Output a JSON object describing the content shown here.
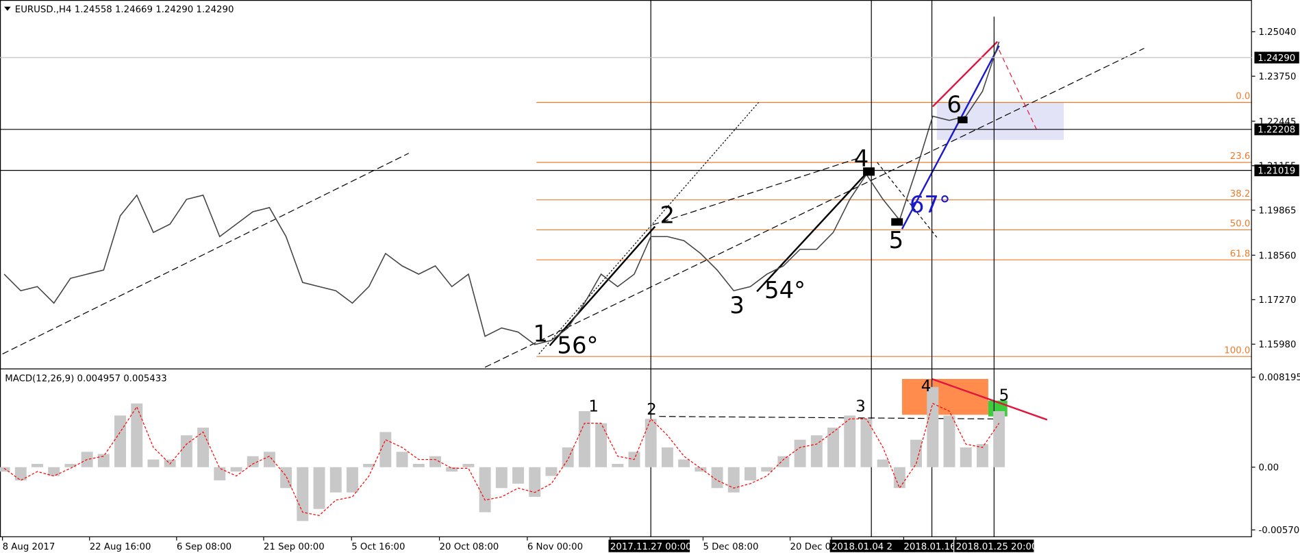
{
  "chart_data": [
    {
      "type": "line",
      "title": "EURUSD.,H4  1.24558 1.24669 1.24290 1.24290",
      "x": [
        0,
        1,
        2,
        3,
        4,
        5,
        6,
        7,
        8,
        9,
        10,
        11,
        12,
        13,
        14,
        15,
        16,
        17,
        18,
        19,
        20,
        21,
        22,
        23,
        24,
        25,
        26,
        27,
        28,
        29,
        30,
        31,
        32,
        33,
        34,
        35,
        36,
        37,
        38,
        39,
        40,
        41,
        42,
        43,
        44,
        45,
        46,
        47,
        48,
        49,
        50,
        51,
        52,
        53,
        54,
        55,
        56,
        57,
        58,
        59,
        60
      ],
      "values": [
        1.1801,
        1.1753,
        1.1765,
        1.1717,
        1.1789,
        1.1801,
        1.1813,
        1.197,
        1.203,
        1.1922,
        1.1946,
        1.2018,
        1.203,
        1.191,
        1.1946,
        1.1982,
        1.1994,
        1.191,
        1.1777,
        1.1765,
        1.1753,
        1.1717,
        1.1765,
        1.1861,
        1.1825,
        1.1801,
        1.1825,
        1.1765,
        1.1801,
        1.1621,
        1.1645,
        1.1633,
        1.1597,
        1.1609,
        1.1645,
        1.1717,
        1.1801,
        1.1765,
        1.1801,
        1.191,
        1.191,
        1.1898,
        1.1861,
        1.1813,
        1.1753,
        1.1765,
        1.1801,
        1.1825,
        1.1873,
        1.1873,
        1.1922,
        1.2018,
        1.209,
        1.2018,
        1.1958,
        1.2102,
        1.2259,
        1.2247,
        1.2259,
        1.2331,
        1.2475
      ],
      "color": "#444444",
      "xlim": [
        -0.25,
        75.25
      ],
      "ylim": [
        1.1531,
        1.2596
      ],
      "yticks": [
        {
          "value": 1.2504,
          "label": "1.25040"
        },
        {
          "value": 1.2375,
          "label": "1.23750"
        },
        {
          "value": 1.22445,
          "label": "1.22445"
        },
        {
          "value": 1.21155,
          "label": "1.21155"
        },
        {
          "value": 1.19865,
          "label": "1.19865"
        },
        {
          "value": 1.1856,
          "label": "1.18560"
        },
        {
          "value": 1.1727,
          "label": "1.17270"
        },
        {
          "value": 1.1598,
          "label": "1.15980"
        }
      ],
      "price_lines": [
        {
          "value": 1.2429,
          "label": "1.24290"
        },
        {
          "value": 1.22208,
          "label": "1.22208"
        },
        {
          "value": 1.21019,
          "label": "1.21019"
        }
      ],
      "fib_labels": [
        "0.0",
        "23.6",
        "38.2",
        "50.0",
        "61.8",
        "100.0"
      ],
      "annotations": [
        "1",
        "2",
        "3",
        "4",
        "5",
        "6",
        "56°",
        "54°",
        "67°"
      ]
    },
    {
      "type": "bar",
      "title": "MACD(12,26,9) 0.004957 0.005433",
      "x": [
        0,
        1,
        2,
        3,
        4,
        5,
        6,
        7,
        8,
        9,
        10,
        11,
        12,
        13,
        14,
        15,
        16,
        17,
        18,
        19,
        20,
        21,
        22,
        23,
        24,
        25,
        26,
        27,
        28,
        29,
        30,
        31,
        32,
        33,
        34,
        35,
        36,
        37,
        38,
        39,
        40,
        41,
        42,
        43,
        44,
        45,
        46,
        47,
        48,
        49,
        50,
        51,
        52,
        53,
        54,
        55,
        56,
        57,
        58,
        59,
        60
      ],
      "series": [
        {
          "type": "bar",
          "color": "#c8c8c8",
          "values": [
            -0.0004,
            -0.0012,
            0.0003,
            -0.0008,
            0.0003,
            0.0014,
            0.0012,
            0.0047,
            0.0058,
            0.0007,
            0.0007,
            0.0029,
            0.0036,
            -0.0012,
            -0.0004,
            0.001,
            0.0014,
            -0.0019,
            -0.0049,
            -0.0038,
            -0.0023,
            -0.0023,
            0.0003,
            0.0032,
            0.0014,
            0.0003,
            0.001,
            -0.0004,
            0.0003,
            -0.0041,
            -0.0019,
            -0.0015,
            -0.0027,
            -0.0008,
            0.0018,
            0.0051,
            0.004,
            0.0003,
            0.0014,
            0.0044,
            0.0018,
            0.0007,
            -0.0004,
            -0.0019,
            -0.0023,
            -0.0012,
            -0.0004,
            0.001,
            0.0025,
            0.0029,
            0.0036,
            0.0047,
            0.0044,
            0.0007,
            -0.0019,
            0.0025,
            0.0073,
            0.0047,
            0.0018,
            0.0021,
            0.0051
          ]
        },
        {
          "type": "line",
          "color": "#ff0000",
          "values": [
            -0.0001,
            -0.0012,
            -0.0004,
            -0.0008,
            -0.0001,
            0.0007,
            0.001,
            0.0032,
            0.0055,
            0.0018,
            0.0003,
            0.0021,
            0.0032,
            -0.0001,
            -0.0008,
            0.0003,
            0.001,
            -0.0008,
            -0.0041,
            -0.0044,
            -0.003,
            -0.0027,
            -0.0008,
            0.0025,
            0.0018,
            0.0007,
            0.0007,
            -0.0001,
            -0.0001,
            -0.003,
            -0.0027,
            -0.0019,
            -0.0023,
            -0.0015,
            0.0007,
            0.004,
            0.004,
            0.001,
            0.0007,
            0.0044,
            0.0029,
            0.001,
            -0.0001,
            -0.0012,
            -0.0019,
            -0.0015,
            -0.0008,
            0.0007,
            0.0018,
            0.0021,
            0.0032,
            0.0044,
            0.0044,
            0.0018,
            -0.0019,
            0.0003,
            0.0058,
            0.0051,
            0.0021,
            0.0018,
            0.004
          ]
        }
      ],
      "xlim": [
        -0.25,
        75.25
      ],
      "ylim": [
        -0.00637,
        0.00879
      ],
      "yticks": [
        0.008195,
        {
          "value": 0,
          "label": "0.00"
        },
        -0.005706
      ],
      "xticks": [
        {
          "value": -0.1,
          "label": "8 Aug 2017"
        },
        {
          "value": 5.15,
          "label": "22 Aug 16:00"
        },
        {
          "value": 10.4,
          "label": "6 Sep 08:00"
        },
        {
          "value": 15.65,
          "label": "21 Sep 00:00"
        },
        {
          "value": 20.95,
          "label": "5 Oct 16:00"
        },
        {
          "value": 26.25,
          "label": "20 Oct 08:00"
        },
        {
          "value": 31.55,
          "label": "6 Nov 00:00"
        },
        {
          "value": 36.55,
          "label": "2017.11.27 00:00"
        },
        {
          "value": 42.15,
          "label": "5 Dec 08:00"
        },
        {
          "value": 47.4,
          "label": "20 Dec 0"
        },
        {
          "value": 49.9,
          "label": "2018.01.04 2"
        },
        {
          "value": 54.25,
          "label": "2018.01.16 0"
        },
        {
          "value": 57.4,
          "label": "2018.01.25 20:00"
        }
      ],
      "annotations": [
        "1",
        "2",
        "3",
        "4",
        "5"
      ]
    }
  ]
}
